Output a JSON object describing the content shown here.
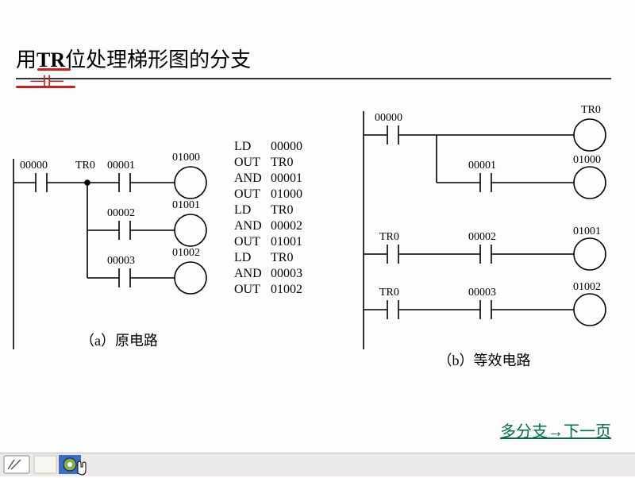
{
  "title": {
    "prefix": "用",
    "bold": "TR",
    "suffix": "位处理梯形图的分支"
  },
  "annotation_symbol": "⊣⊢",
  "diagram_a": {
    "caption": "（a）原电路",
    "contacts": [
      {
        "label": "00000"
      },
      {
        "label_top": "TR0",
        "label_contact": "00001",
        "coil": "01000"
      },
      {
        "label_contact": "00002",
        "coil": "01001"
      },
      {
        "label_contact": "00003",
        "coil": "01002"
      }
    ],
    "mnemonic": [
      [
        "LD",
        "00000"
      ],
      [
        "OUT",
        "TR0"
      ],
      [
        "AND",
        "00001"
      ],
      [
        "OUT",
        "01000"
      ],
      [
        "LD",
        "TR0"
      ],
      [
        "AND",
        "00002"
      ],
      [
        "OUT",
        "01001"
      ],
      [
        "LD",
        "TR0"
      ],
      [
        "AND",
        "00003"
      ],
      [
        "OUT",
        "01002"
      ]
    ]
  },
  "diagram_b": {
    "caption": "（b）等效电路",
    "rungs": [
      {
        "c1": "00000",
        "c2": null,
        "coil": "TR0",
        "branch_c": "00001",
        "branch_coil": "01000"
      },
      {
        "c1": "TR0",
        "c2": "00002",
        "coil": "01001"
      },
      {
        "c1": "TR0",
        "c2": "00003",
        "coil": "01002"
      }
    ]
  },
  "next_link": "多分支→下一页",
  "colors": {
    "text": "#000000",
    "annotation": "#d11c1c",
    "link": "#036f3f",
    "line": "#000000",
    "bg": "#fdfdfd"
  },
  "stroke_width": 1.6
}
